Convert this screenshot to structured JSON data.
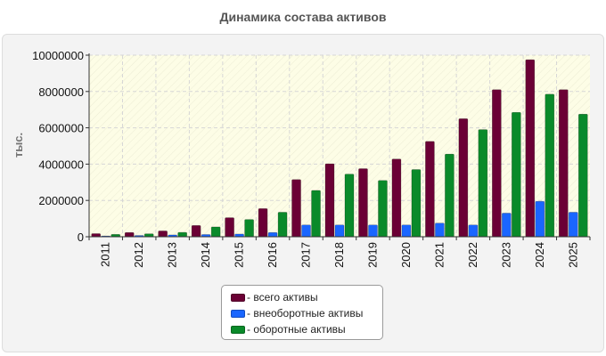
{
  "chart_data": {
    "type": "bar",
    "title": "Динамика состава активов",
    "ylabel": "тыс.",
    "xlabel": "",
    "categories": [
      "2011",
      "2012",
      "2013",
      "2014",
      "2015",
      "2016",
      "2017",
      "2018",
      "2019",
      "2020",
      "2021",
      "2022",
      "2023",
      "2024",
      "2025"
    ],
    "ylim": [
      0,
      10000000
    ],
    "yticks": [
      0,
      2000000,
      4000000,
      6000000,
      8000000,
      10000000
    ],
    "ytick_labels": [
      "0",
      "2000000",
      "4000000",
      "6000000",
      "8000000",
      "10000000"
    ],
    "grid": true,
    "legend_position": "bottom-center",
    "series": [
      {
        "name": "- всего активы",
        "color": "#6b0035",
        "values": [
          170000,
          230000,
          320000,
          620000,
          1050000,
          1550000,
          3150000,
          4020000,
          3750000,
          4280000,
          5250000,
          6500000,
          8100000,
          9750000,
          8100000
        ]
      },
      {
        "name": "- внеоборотные активы",
        "color": "#1a66ff",
        "values": [
          40000,
          70000,
          100000,
          120000,
          150000,
          230000,
          650000,
          650000,
          650000,
          650000,
          750000,
          650000,
          1300000,
          1950000,
          1350000
        ]
      },
      {
        "name": "- оборотные активы",
        "color": "#0a8a2a",
        "values": [
          130000,
          160000,
          240000,
          540000,
          950000,
          1350000,
          2550000,
          3450000,
          3100000,
          3700000,
          4550000,
          5900000,
          6850000,
          7850000,
          6750000
        ]
      }
    ]
  }
}
